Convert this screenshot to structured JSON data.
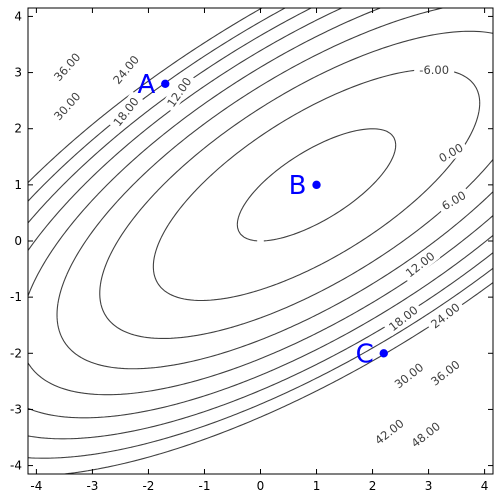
{
  "chart_data": {
    "type": "contour",
    "function_note": "",
    "xlim": [
      -4.15,
      4.15
    ],
    "ylim": [
      -4.15,
      4.15
    ],
    "x_ticks": [
      -4,
      -3,
      -2,
      -1,
      0,
      1,
      2,
      3,
      4
    ],
    "y_ticks": [
      -4,
      -3,
      -2,
      -1,
      0,
      1,
      2,
      3,
      4
    ],
    "x_tick_labels": [
      "-4",
      "-3",
      "-2",
      "-1",
      "0",
      "1",
      "2",
      "3",
      "4"
    ],
    "y_tick_labels": [
      "-4",
      "-3",
      "-2",
      "-1",
      "0",
      "1",
      "2",
      "3",
      "4"
    ],
    "contour_levels": [
      -6,
      0,
      6,
      12,
      18,
      24,
      30,
      36,
      42,
      48
    ],
    "contour_labels": [
      {
        "text": "-6.00",
        "x": 3.1,
        "y": 3.05,
        "angle": 0
      },
      {
        "text": "0.00",
        "x": 3.4,
        "y": 1.57,
        "angle": -30
      },
      {
        "text": "6.00",
        "x": 3.45,
        "y": 0.72,
        "angle": -30
      },
      {
        "text": "12.00",
        "x": 2.85,
        "y": -0.42,
        "angle": -38
      },
      {
        "text": "18.00",
        "x": 2.55,
        "y": -1.38,
        "angle": -38
      },
      {
        "text": "24.00",
        "x": 3.3,
        "y": -1.33,
        "angle": -38
      },
      {
        "text": "30.00",
        "x": 2.65,
        "y": -2.4,
        "angle": -38
      },
      {
        "text": "36.00",
        "x": 3.3,
        "y": -2.35,
        "angle": -38
      },
      {
        "text": "42.00",
        "x": 2.3,
        "y": -3.4,
        "angle": -38
      },
      {
        "text": "48.00",
        "x": 2.95,
        "y": -3.45,
        "angle": -38
      },
      {
        "text": "12.00",
        "x": -1.45,
        "y": 2.65,
        "angle": -55
      },
      {
        "text": "18.00",
        "x": -2.4,
        "y": 2.3,
        "angle": -52
      },
      {
        "text": "24.00",
        "x": -2.4,
        "y": 3.05,
        "angle": -50
      },
      {
        "text": "30.00",
        "x": -3.45,
        "y": 2.4,
        "angle": -48
      },
      {
        "text": "36.00",
        "x": -3.45,
        "y": 3.1,
        "angle": -48
      }
    ],
    "points": [
      {
        "name": "A",
        "x": -1.7,
        "y": 2.8
      },
      {
        "name": "B",
        "x": 1.0,
        "y": 1.0
      },
      {
        "name": "C",
        "x": 2.2,
        "y": -2.0
      }
    ],
    "colors": {
      "contour": "#404040",
      "points": "#0000ff",
      "axis": "#000000"
    }
  }
}
